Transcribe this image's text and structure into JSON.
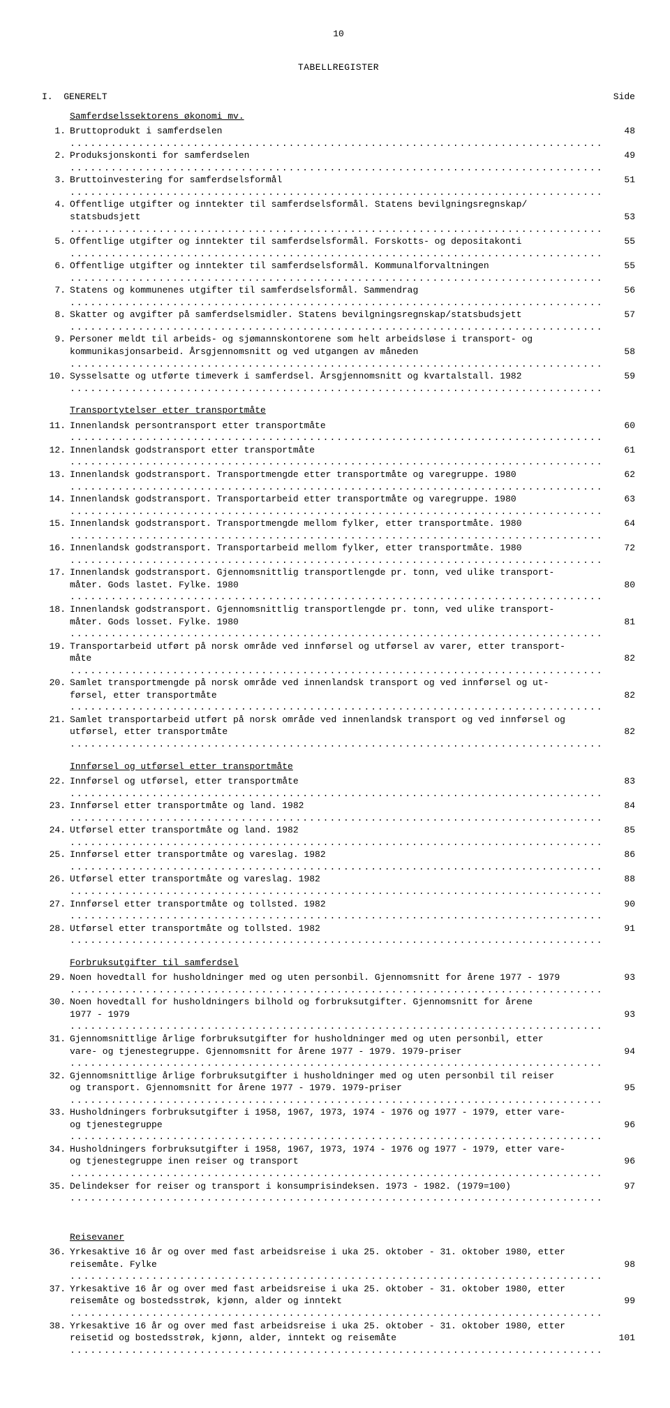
{
  "page_number": "10",
  "register_title": "TABELLREGISTER",
  "section_roman": "I.",
  "section_title": "GENERELT",
  "side_label": "Side",
  "groups": [
    {
      "heading": "Samferdselssektorens økonomi mv.",
      "items": [
        {
          "n": "1.",
          "t": "Bruttoprodukt i samferdselen",
          "p": "48"
        },
        {
          "n": "2.",
          "t": "Produksjonskonti for samferdselen",
          "p": "49"
        },
        {
          "n": "3.",
          "t": "Bruttoinvestering for samferdselsformål",
          "p": "51"
        },
        {
          "n": "4.",
          "t": "Offentlige utgifter og inntekter til samferdselsformål.  Statens bevilgningsregnskap/",
          "p": "",
          "noleader": true
        },
        {
          "n": "",
          "t": "statsbudsjett",
          "p": "53",
          "cont": true
        },
        {
          "n": "5.",
          "t": "Offentlige utgifter og inntekter til samferdselsformål.  Forskotts- og depositakonti",
          "p": "55"
        },
        {
          "n": "6.",
          "t": "Offentlige utgifter og inntekter til samferdselsformål.  Kommunalforvaltningen",
          "p": "55"
        },
        {
          "n": "7.",
          "t": "Statens og kommunenes utgifter til samferdselsformål.  Sammendrag",
          "p": "56"
        },
        {
          "n": "8.",
          "t": "Skatter og avgifter på samferdselsmidler.  Statens bevilgningsregnskap/statsbudsjett",
          "p": "57"
        },
        {
          "n": "9.",
          "t": "Personer meldt til arbeids- og sjømannskontorene som helt arbeidsløse i transport- og",
          "p": "",
          "noleader": true
        },
        {
          "n": "",
          "t": "kommunikasjonsarbeid.  Årsgjennomsnitt og ved utgangen av måneden",
          "p": "58",
          "cont": true
        },
        {
          "n": "10.",
          "t": "Sysselsatte og utførte timeverk i samferdsel.  Årsgjennomsnitt og kvartalstall.  1982",
          "p": "59"
        }
      ]
    },
    {
      "heading": "Transportytelser etter transportmåte",
      "items": [
        {
          "n": "11.",
          "t": "Innenlandsk persontransport etter transportmåte",
          "p": "60"
        },
        {
          "n": "12.",
          "t": "Innenlandsk godstransport etter transportmåte",
          "p": "61"
        },
        {
          "n": "13.",
          "t": "Innenlandsk godstransport.  Transportmengde etter transportmåte og varegruppe.  1980",
          "p": "62"
        },
        {
          "n": "14.",
          "t": "Innenlandsk godstransport.  Transportarbeid etter transportmåte og varegruppe.  1980",
          "p": "63"
        },
        {
          "n": "15.",
          "t": "Innenlandsk godstransport.  Transportmengde mellom fylker, etter transportmåte.  1980",
          "p": "64"
        },
        {
          "n": "16.",
          "t": "Innenlandsk godstransport.  Transportarbeid mellom fylker, etter transportmåte.  1980",
          "p": "72"
        },
        {
          "n": "17.",
          "t": "Innenlandsk godstransport.  Gjennomsnittlig transportlengde pr. tonn, ved ulike transport-",
          "p": "",
          "noleader": true
        },
        {
          "n": "",
          "t": "måter.  Gods lastet.  Fylke.  1980",
          "p": "80",
          "cont": true
        },
        {
          "n": "18.",
          "t": "Innenlandsk godstransport.  Gjennomsnittlig transportlengde pr. tonn, ved ulike transport-",
          "p": "",
          "noleader": true
        },
        {
          "n": "",
          "t": "måter.  Gods losset.  Fylke.  1980",
          "p": "81",
          "cont": true
        },
        {
          "n": "19.",
          "t": "Transportarbeid utført på norsk område ved innførsel og utførsel av varer, etter transport-",
          "p": "",
          "noleader": true
        },
        {
          "n": "",
          "t": "måte",
          "p": "82",
          "cont": true
        },
        {
          "n": "20.",
          "t": "Samlet transportmengde på norsk område ved innenlandsk transport og ved innførsel og ut-",
          "p": "",
          "noleader": true
        },
        {
          "n": "",
          "t": "førsel, etter transportmåte",
          "p": "82",
          "cont": true
        },
        {
          "n": "21.",
          "t": "Samlet transportarbeid utført på norsk område ved innenlandsk transport og ved innførsel og",
          "p": "",
          "noleader": true
        },
        {
          "n": "",
          "t": "utførsel, etter transportmåte",
          "p": "82",
          "cont": true
        }
      ]
    },
    {
      "heading": "Innførsel og utførsel etter transportmåte",
      "items": [
        {
          "n": "22.",
          "t": "Innførsel og utførsel, etter transportmåte",
          "p": "83"
        },
        {
          "n": "23.",
          "t": "Innførsel etter transportmåte og land.  1982",
          "p": "84"
        },
        {
          "n": "24.",
          "t": "Utførsel etter transportmåte og land.  1982",
          "p": "85"
        },
        {
          "n": "25.",
          "t": "Innførsel etter transportmåte og vareslag.  1982",
          "p": "86"
        },
        {
          "n": "26.",
          "t": "Utførsel etter transportmåte og vareslag.  1982",
          "p": "88"
        },
        {
          "n": "27.",
          "t": "Innførsel etter transportmåte og tollsted.  1982",
          "p": "90"
        },
        {
          "n": "28.",
          "t": "Utførsel etter transportmåte og tollsted.  1982",
          "p": "91"
        }
      ]
    },
    {
      "heading": "Forbruksutgifter til samferdsel",
      "items": [
        {
          "n": "29.",
          "t": "Noen hovedtall for husholdninger med og uten personbil.  Gjennomsnitt for årene 1977 - 1979",
          "p": "93"
        },
        {
          "n": "30.",
          "t": "Noen hovedtall for husholdningers bilhold og forbruksutgifter.  Gjennomsnitt for årene",
          "p": "",
          "noleader": true
        },
        {
          "n": "",
          "t": "1977 - 1979",
          "p": "93",
          "cont": true
        },
        {
          "n": "31.",
          "t": "Gjennomsnittlige årlige forbruksutgifter for husholdninger med og uten personbil, etter",
          "p": "",
          "noleader": true
        },
        {
          "n": "",
          "t": "vare- og tjenestegruppe.  Gjennomsnitt for årene 1977 - 1979.  1979-priser",
          "p": "94",
          "cont": true
        },
        {
          "n": "32.",
          "t": "Gjennomsnittlige årlige forbruksutgifter i husholdninger med og uten personbil til reiser",
          "p": "",
          "noleader": true
        },
        {
          "n": "",
          "t": "og transport.  Gjennomsnitt for årene 1977 - 1979.  1979-priser",
          "p": "95",
          "cont": true
        },
        {
          "n": "33.",
          "t": "Husholdningers forbruksutgifter i 1958, 1967, 1973, 1974 - 1976 og 1977 - 1979, etter vare-",
          "p": "",
          "noleader": true
        },
        {
          "n": "",
          "t": "og tjenestegruppe",
          "p": "96",
          "cont": true
        },
        {
          "n": "34.",
          "t": "Husholdningers forbruksutgifter i 1958, 1967, 1973, 1974 - 1976 og 1977 - 1979, etter vare-",
          "p": "",
          "noleader": true
        },
        {
          "n": "",
          "t": "og tjenestegruppe inen reiser og transport",
          "p": "96",
          "cont": true
        },
        {
          "n": "35.",
          "t": "Delindekser for reiser og transport i konsumprisindeksen.  1973 - 1982.  (1979=100)",
          "p": "97"
        }
      ]
    },
    {
      "heading": "Reisevaner",
      "items": [
        {
          "n": "36.",
          "t": "Yrkesaktive 16 år og over med fast arbeidsreise i uka 25. oktober - 31. oktober 1980, etter",
          "p": "",
          "noleader": true
        },
        {
          "n": "",
          "t": "reisemåte.  Fylke",
          "p": "98",
          "cont": true
        },
        {
          "n": "37.",
          "t": "Yrkesaktive 16 år og over med fast arbeidsreise i uka 25. oktober - 31. oktober 1980, etter",
          "p": "",
          "noleader": true
        },
        {
          "n": "",
          "t": "reisemåte og bostedsstrøk, kjønn, alder og inntekt",
          "p": "99",
          "cont": true
        },
        {
          "n": "38.",
          "t": "Yrkesaktive 16 år og over med fast arbeidsreise i uka 25. oktober - 31. oktober 1980, etter",
          "p": "",
          "noleader": true
        },
        {
          "n": "",
          "t": "reisetid og bostedsstrøk, kjønn, alder, inntekt og reisemåte",
          "p": "101",
          "cont": true
        }
      ]
    }
  ]
}
